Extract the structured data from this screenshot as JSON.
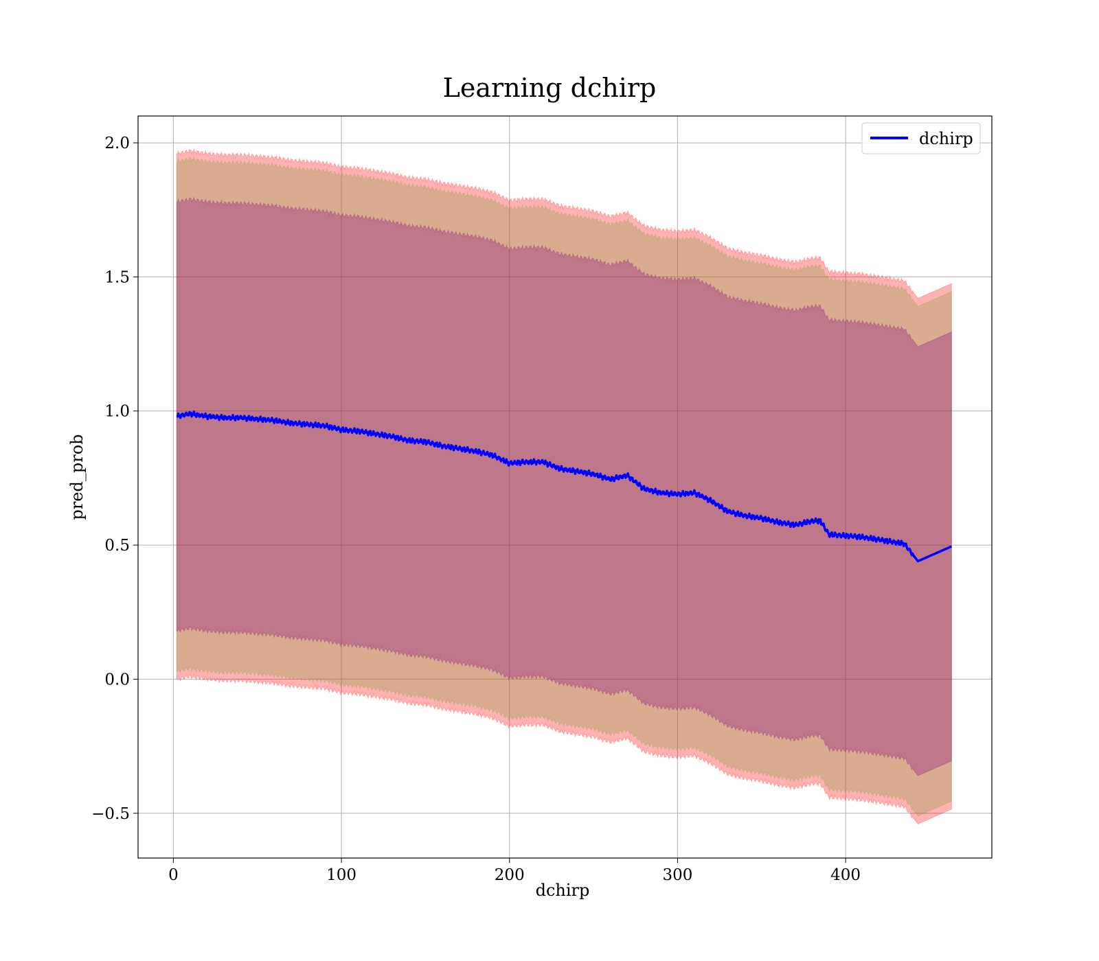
{
  "chart_data": {
    "type": "line",
    "title": "Learning dchirp",
    "xlabel": "dchirp",
    "ylabel": "pred_prob",
    "xlim": [
      -21,
      487
    ],
    "ylim": [
      -0.667,
      2.1
    ],
    "xticks": [
      0,
      100,
      200,
      300,
      400
    ],
    "xtick_labels": [
      "0",
      "100",
      "200",
      "300",
      "400"
    ],
    "yticks": [
      -0.5,
      0.0,
      0.5,
      1.0,
      1.5,
      2.0
    ],
    "ytick_labels": [
      "−0.5",
      "0.0",
      "0.5",
      "1.0",
      "1.5",
      "2.0"
    ],
    "grid": true,
    "legend_position": "top-right",
    "series": [
      {
        "name": "dchirp",
        "color": "#0000ff",
        "x": [
          2,
          10,
          20,
          30,
          40,
          50,
          60,
          70,
          80,
          90,
          100,
          110,
          120,
          130,
          140,
          150,
          160,
          170,
          180,
          190,
          200,
          210,
          220,
          230,
          240,
          250,
          260,
          270,
          280,
          290,
          300,
          310,
          320,
          330,
          340,
          350,
          360,
          370,
          380,
          385,
          390,
          400,
          410,
          420,
          430,
          435,
          443,
          463
        ],
        "y": [
          0.98,
          0.99,
          0.98,
          0.975,
          0.975,
          0.97,
          0.965,
          0.955,
          0.95,
          0.945,
          0.93,
          0.925,
          0.915,
          0.905,
          0.89,
          0.885,
          0.87,
          0.86,
          0.85,
          0.835,
          0.805,
          0.81,
          0.81,
          0.785,
          0.775,
          0.765,
          0.745,
          0.76,
          0.71,
          0.695,
          0.69,
          0.695,
          0.665,
          0.625,
          0.61,
          0.6,
          0.585,
          0.575,
          0.59,
          0.59,
          0.54,
          0.535,
          0.53,
          0.52,
          0.51,
          0.505,
          0.44,
          0.495
        ]
      }
    ],
    "bands": [
      {
        "color": "#ff0000",
        "opacity": 0.3,
        "half_width": 0.98
      },
      {
        "color": "#80a040",
        "opacity": 0.3,
        "half_width": 0.95
      },
      {
        "color": "#800080",
        "opacity": 0.3,
        "half_width": 0.8
      }
    ]
  }
}
